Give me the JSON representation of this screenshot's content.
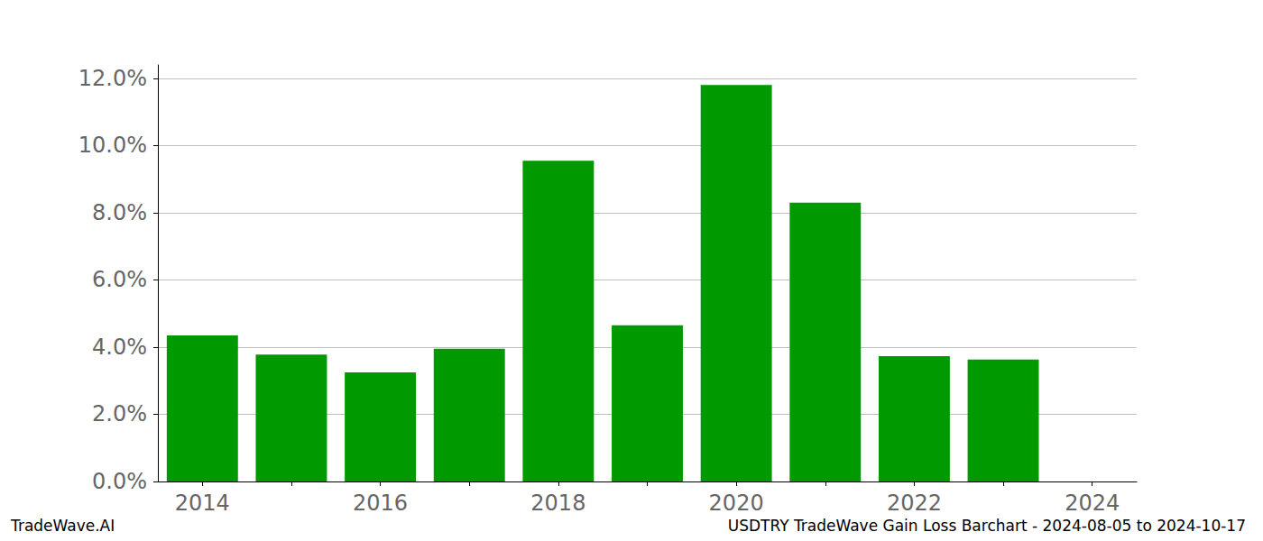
{
  "chart_data": {
    "type": "bar",
    "title": "USDTRY TradeWave Gain Loss Barchart - 2024-08-05 to 2024-10-17",
    "source": "TradeWave.AI",
    "categories": [
      "2014",
      null,
      "2016",
      null,
      "2018",
      null,
      "2020",
      null,
      "2022",
      null,
      "2024"
    ],
    "values": [
      4.35,
      3.78,
      3.25,
      3.95,
      9.55,
      4.65,
      11.8,
      8.3,
      3.73,
      3.63,
      null
    ],
    "color": "#009900",
    "ylim": [
      0,
      12.4
    ],
    "yticks": [
      {
        "value": 0,
        "label": "0.0%"
      },
      {
        "value": 2,
        "label": "2.0%"
      },
      {
        "value": 4,
        "label": "4.0%"
      },
      {
        "value": 6,
        "label": "6.0%"
      },
      {
        "value": 8,
        "label": "8.0%"
      },
      {
        "value": 10,
        "label": "10.0%"
      },
      {
        "value": 12,
        "label": "12.0%"
      }
    ],
    "grid": true
  }
}
